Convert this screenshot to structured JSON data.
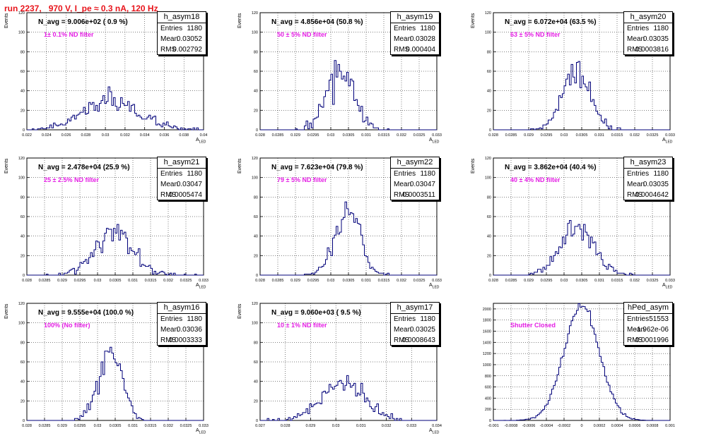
{
  "header": {
    "run_title": "run 2237,   970 V, I_pe ≈ 0.3 nA, 120 Hz"
  },
  "colors": {
    "histogram_line": "#00007a",
    "filter_text": "#e41ee4",
    "title_text": "#e8141b"
  },
  "chart_data": [
    {
      "type": "histogram",
      "name": "h_asym18",
      "navg": "N_avg = 9.006e+02 ( 0.9 %)",
      "filter": "1± 0.1% ND filter",
      "stats": [
        [
          "Entries",
          "1180"
        ],
        [
          "Mean",
          "0.03052"
        ],
        [
          "RMS",
          "0.002792"
        ]
      ],
      "xlim": [
        0.022,
        0.04
      ],
      "ylim": [
        0,
        120
      ],
      "yticks": [
        0,
        20,
        40,
        60,
        80,
        100,
        120
      ],
      "xticks": [
        0.022,
        0.024,
        0.026,
        0.028,
        0.03,
        0.032,
        0.034,
        0.036,
        0.038,
        0.04
      ],
      "xticklabels": [
        "0.022",
        "0.024",
        "0.026",
        "0.028",
        "0.03",
        "0.032",
        "0.034",
        "0.036",
        "0.038",
        "0.04"
      ],
      "ylabel": "Events",
      "xlabel": "A",
      "xlabel_sub": "LED",
      "gen": {
        "mean": 0.0306,
        "sigma": 0.0028,
        "entries": 1180,
        "nbins": 100,
        "seed": 11
      }
    },
    {
      "type": "histogram",
      "name": "h_asym19",
      "navg": "N_avg = 4.856e+04 (50.8 %)",
      "filter": "50 ± 5% ND filter",
      "stats": [
        [
          "Entries",
          "1180"
        ],
        [
          "Mean",
          "0.03028"
        ],
        [
          "RMS",
          "0.000404"
        ]
      ],
      "xlim": [
        0.028,
        0.033
      ],
      "ylim": [
        0,
        120
      ],
      "yticks": [
        0,
        20,
        40,
        60,
        80,
        100,
        120
      ],
      "xticks": [
        0.028,
        0.0285,
        0.029,
        0.0295,
        0.03,
        0.0305,
        0.031,
        0.0315,
        0.032,
        0.0325,
        0.033
      ],
      "xticklabels": [
        "0.028",
        "0.0285",
        "0.029",
        "0.0295",
        "0.03",
        "0.0305",
        "0.031",
        "0.0315",
        "0.032",
        "0.0325",
        "0.033"
      ],
      "ylabel": "Events",
      "xlabel": "A",
      "xlabel_sub": "LED",
      "gen": {
        "mean": 0.03028,
        "sigma": 0.000404,
        "entries": 1180,
        "nbins": 100,
        "seed": 19
      }
    },
    {
      "type": "histogram",
      "name": "h_asym20",
      "navg": "N_avg = 6.072e+04 (63.5 %)",
      "filter": "63 ± 5% ND filter",
      "stats": [
        [
          "Entries",
          "1180"
        ],
        [
          "Mean",
          "0.03035"
        ],
        [
          "RMS",
          "0.0003816"
        ]
      ],
      "xlim": [
        0.028,
        0.033
      ],
      "ylim": [
        0,
        120
      ],
      "yticks": [
        0,
        20,
        40,
        60,
        80,
        100,
        120
      ],
      "xticks": [
        0.028,
        0.0285,
        0.029,
        0.0295,
        0.03,
        0.0305,
        0.031,
        0.0315,
        0.032,
        0.0325,
        0.033
      ],
      "xticklabels": [
        "0.028",
        "0.0285",
        "0.029",
        "0.0295",
        "0.03",
        "0.0305",
        "0.031",
        "0.0315",
        "0.032",
        "0.0325",
        "0.033"
      ],
      "ylabel": "Events",
      "xlabel": "A",
      "xlabel_sub": "LED",
      "gen": {
        "mean": 0.03035,
        "sigma": 0.00038,
        "entries": 1180,
        "nbins": 100,
        "seed": 20
      }
    },
    {
      "type": "histogram",
      "name": "h_asym21",
      "navg": "N_avg = 2.478e+04 (25.9 %)",
      "filter": "25 ± 2.5% ND filter",
      "stats": [
        [
          "Entries",
          "1180"
        ],
        [
          "Mean",
          "0.03047"
        ],
        [
          "RMS",
          "0.0005474"
        ]
      ],
      "xlim": [
        0.028,
        0.033
      ],
      "ylim": [
        0,
        120
      ],
      "yticks": [
        0,
        20,
        40,
        60,
        80,
        100,
        120
      ],
      "xticks": [
        0.028,
        0.0285,
        0.029,
        0.0295,
        0.03,
        0.0305,
        0.031,
        0.0315,
        0.032,
        0.0325,
        0.033
      ],
      "xticklabels": [
        "0.028",
        "0.0285",
        "0.029",
        "0.0295",
        "0.03",
        "0.0305",
        "0.031",
        "0.0315",
        "0.032",
        "0.0325",
        "0.033"
      ],
      "ylabel": "Events",
      "xlabel": "A",
      "xlabel_sub": "LED",
      "gen": {
        "mean": 0.03047,
        "sigma": 0.00055,
        "entries": 1180,
        "nbins": 100,
        "seed": 21
      }
    },
    {
      "type": "histogram",
      "name": "h_asym22",
      "navg": "N_avg = 7.623e+04 (79.8 %)",
      "filter": "79 ± 5% ND filter",
      "stats": [
        [
          "Entries",
          "1180"
        ],
        [
          "Mean",
          "0.03047"
        ],
        [
          "RMS",
          "0.0003511"
        ]
      ],
      "xlim": [
        0.028,
        0.033
      ],
      "ylim": [
        0,
        120
      ],
      "yticks": [
        0,
        20,
        40,
        60,
        80,
        100,
        120
      ],
      "xticks": [
        0.028,
        0.0285,
        0.029,
        0.0295,
        0.03,
        0.0305,
        0.031,
        0.0315,
        0.032,
        0.0325,
        0.033
      ],
      "xticklabels": [
        "0.028",
        "0.0285",
        "0.029",
        "0.0295",
        "0.03",
        "0.0305",
        "0.031",
        "0.0315",
        "0.032",
        "0.0325",
        "0.033"
      ],
      "ylabel": "Events",
      "xlabel": "A",
      "xlabel_sub": "LED",
      "gen": {
        "mean": 0.03047,
        "sigma": 0.00035,
        "entries": 1180,
        "nbins": 100,
        "seed": 22
      }
    },
    {
      "type": "histogram",
      "name": "h_asym23",
      "navg": "N_avg = 3.862e+04 (40.4 %)",
      "filter": "40 ± 4% ND filter",
      "stats": [
        [
          "Entries",
          "1180"
        ],
        [
          "Mean",
          "0.03035"
        ],
        [
          "RMS",
          "0.0004642"
        ]
      ],
      "xlim": [
        0.028,
        0.033
      ],
      "ylim": [
        0,
        120
      ],
      "yticks": [
        0,
        20,
        40,
        60,
        80,
        100,
        120
      ],
      "xticks": [
        0.028,
        0.0285,
        0.029,
        0.0295,
        0.03,
        0.0305,
        0.031,
        0.0315,
        0.032,
        0.0325,
        0.033
      ],
      "xticklabels": [
        "0.028",
        "0.0285",
        "0.029",
        "0.0295",
        "0.03",
        "0.0305",
        "0.031",
        "0.0315",
        "0.032",
        "0.0325",
        "0.033"
      ],
      "ylabel": "Events",
      "xlabel": "A",
      "xlabel_sub": "LED",
      "gen": {
        "mean": 0.03035,
        "sigma": 0.00046,
        "entries": 1180,
        "nbins": 100,
        "seed": 23
      }
    },
    {
      "type": "histogram",
      "name": "h_asym16",
      "navg": "N_avg = 9.555e+04 (100.0 %)",
      "filter": "100% (No filter)",
      "stats": [
        [
          "Entries",
          "1180"
        ],
        [
          "Mean",
          "0.03036"
        ],
        [
          "RMS",
          "0.0003333"
        ]
      ],
      "xlim": [
        0.028,
        0.033
      ],
      "ylim": [
        0,
        120
      ],
      "yticks": [
        0,
        20,
        40,
        60,
        80,
        100,
        120
      ],
      "xticks": [
        0.028,
        0.0285,
        0.029,
        0.0295,
        0.03,
        0.0305,
        0.031,
        0.0315,
        0.032,
        0.0325,
        0.033
      ],
      "xticklabels": [
        "0.028",
        "0.0285",
        "0.029",
        "0.0295",
        "0.03",
        "0.0305",
        "0.031",
        "0.0315",
        "0.032",
        "0.0325",
        "0.033"
      ],
      "ylabel": "Events",
      "xlabel": "A",
      "xlabel_sub": "LED",
      "gen": {
        "mean": 0.03036,
        "sigma": 0.00033,
        "entries": 1180,
        "nbins": 100,
        "seed": 16
      }
    },
    {
      "type": "histogram",
      "name": "h_asym17",
      "navg": "N_avg = 9.060e+03 ( 9.5 %)",
      "filter": "10 ± 1% ND filter",
      "stats": [
        [
          "Entries",
          "1180"
        ],
        [
          "Mean",
          "0.03025"
        ],
        [
          "RMS",
          "0.0008643"
        ]
      ],
      "xlim": [
        0.027,
        0.034
      ],
      "ylim": [
        0,
        120
      ],
      "yticks": [
        0,
        20,
        40,
        60,
        80,
        100,
        120
      ],
      "xticks": [
        0.027,
        0.028,
        0.029,
        0.03,
        0.031,
        0.032,
        0.033,
        0.034
      ],
      "xticklabels": [
        "0.027",
        "0.028",
        "0.029",
        "0.03",
        "0.031",
        "0.032",
        "0.033",
        "0.034"
      ],
      "ylabel": "Events",
      "xlabel": "A",
      "xlabel_sub": "LED",
      "gen": {
        "mean": 0.03025,
        "sigma": 0.00086,
        "entries": 1180,
        "nbins": 100,
        "seed": 17
      }
    },
    {
      "type": "histogram",
      "name": "hPed_asym",
      "navg": "",
      "filter": "Shutter Closed",
      "stats": [
        [
          "Entries",
          "51553"
        ],
        [
          "Mean",
          "-1.962e-06"
        ],
        [
          "RMS",
          "0.0001996"
        ]
      ],
      "xlim": [
        -0.001,
        0.001
      ],
      "ylim": [
        0,
        2100
      ],
      "yticks": [
        0,
        200,
        400,
        600,
        800,
        1000,
        1200,
        1400,
        1600,
        1800,
        2000
      ],
      "xticks": [
        -0.001,
        -0.0008,
        -0.0006,
        -0.0004,
        -0.0002,
        0,
        0.0002,
        0.0004,
        0.0006,
        0.0008,
        0.001
      ],
      "xticklabels": [
        "-0.001",
        "-0.0008",
        "-0.0006",
        "-0.0004",
        "-0.0002",
        "0",
        "0.0002",
        "0.0004",
        "0.0006",
        "0.0008",
        "0.001"
      ],
      "ylabel": "",
      "xlabel": "",
      "xlabel_sub": "",
      "gen": {
        "mean": -2e-06,
        "sigma": 0.0002,
        "entries": 51553,
        "nbins": 100,
        "seed": 99
      }
    }
  ]
}
